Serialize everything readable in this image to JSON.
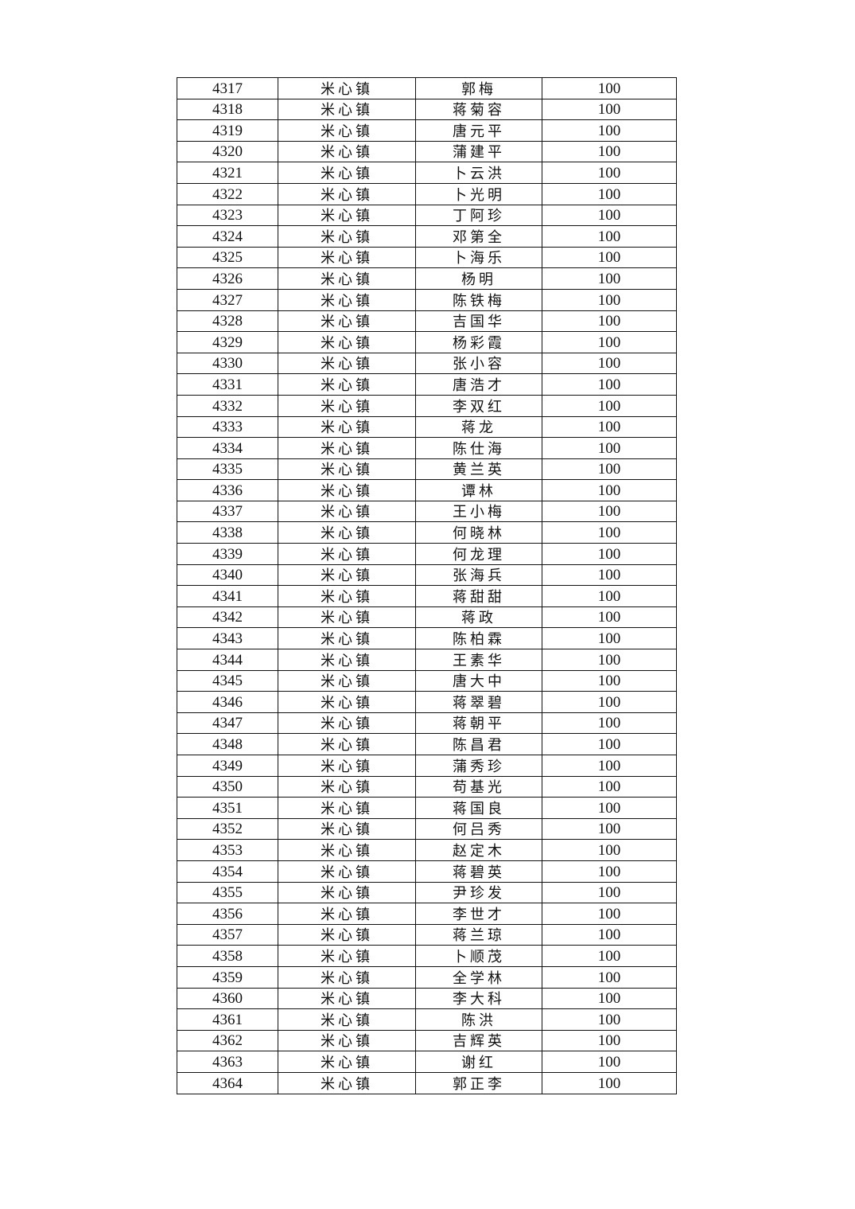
{
  "table": {
    "rows": [
      [
        "4317",
        "米心镇",
        "郭梅",
        "100"
      ],
      [
        "4318",
        "米心镇",
        "蒋菊容",
        "100"
      ],
      [
        "4319",
        "米心镇",
        "唐元平",
        "100"
      ],
      [
        "4320",
        "米心镇",
        "蒲建平",
        "100"
      ],
      [
        "4321",
        "米心镇",
        "卜云洪",
        "100"
      ],
      [
        "4322",
        "米心镇",
        "卜光明",
        "100"
      ],
      [
        "4323",
        "米心镇",
        "丁阿珍",
        "100"
      ],
      [
        "4324",
        "米心镇",
        "邓第全",
        "100"
      ],
      [
        "4325",
        "米心镇",
        "卜海乐",
        "100"
      ],
      [
        "4326",
        "米心镇",
        "杨明",
        "100"
      ],
      [
        "4327",
        "米心镇",
        "陈铁梅",
        "100"
      ],
      [
        "4328",
        "米心镇",
        "吉国华",
        "100"
      ],
      [
        "4329",
        "米心镇",
        "杨彩霞",
        "100"
      ],
      [
        "4330",
        "米心镇",
        "张小容",
        "100"
      ],
      [
        "4331",
        "米心镇",
        "唐浩才",
        "100"
      ],
      [
        "4332",
        "米心镇",
        "李双红",
        "100"
      ],
      [
        "4333",
        "米心镇",
        "蒋龙",
        "100"
      ],
      [
        "4334",
        "米心镇",
        "陈仕海",
        "100"
      ],
      [
        "4335",
        "米心镇",
        "黄兰英",
        "100"
      ],
      [
        "4336",
        "米心镇",
        "谭林",
        "100"
      ],
      [
        "4337",
        "米心镇",
        "王小梅",
        "100"
      ],
      [
        "4338",
        "米心镇",
        "何晓林",
        "100"
      ],
      [
        "4339",
        "米心镇",
        "何龙理",
        "100"
      ],
      [
        "4340",
        "米心镇",
        "张海兵",
        "100"
      ],
      [
        "4341",
        "米心镇",
        "蒋甜甜",
        "100"
      ],
      [
        "4342",
        "米心镇",
        "蒋政",
        "100"
      ],
      [
        "4343",
        "米心镇",
        "陈柏霖",
        "100"
      ],
      [
        "4344",
        "米心镇",
        "王素华",
        "100"
      ],
      [
        "4345",
        "米心镇",
        "唐大中",
        "100"
      ],
      [
        "4346",
        "米心镇",
        "蒋翠碧",
        "100"
      ],
      [
        "4347",
        "米心镇",
        "蒋朝平",
        "100"
      ],
      [
        "4348",
        "米心镇",
        "陈昌君",
        "100"
      ],
      [
        "4349",
        "米心镇",
        "蒲秀珍",
        "100"
      ],
      [
        "4350",
        "米心镇",
        "苟基光",
        "100"
      ],
      [
        "4351",
        "米心镇",
        "蒋国良",
        "100"
      ],
      [
        "4352",
        "米心镇",
        "何吕秀",
        "100"
      ],
      [
        "4353",
        "米心镇",
        "赵定木",
        "100"
      ],
      [
        "4354",
        "米心镇",
        "蒋碧英",
        "100"
      ],
      [
        "4355",
        "米心镇",
        "尹珍发",
        "100"
      ],
      [
        "4356",
        "米心镇",
        "李世才",
        "100"
      ],
      [
        "4357",
        "米心镇",
        "蒋兰琼",
        "100"
      ],
      [
        "4358",
        "米心镇",
        "卜顺茂",
        "100"
      ],
      [
        "4359",
        "米心镇",
        "全学林",
        "100"
      ],
      [
        "4360",
        "米心镇",
        "李大科",
        "100"
      ],
      [
        "4361",
        "米心镇",
        "陈洪",
        "100"
      ],
      [
        "4362",
        "米心镇",
        "吉辉英",
        "100"
      ],
      [
        "4363",
        "米心镇",
        "谢红",
        "100"
      ],
      [
        "4364",
        "米心镇",
        "郭正李",
        "100"
      ]
    ]
  }
}
